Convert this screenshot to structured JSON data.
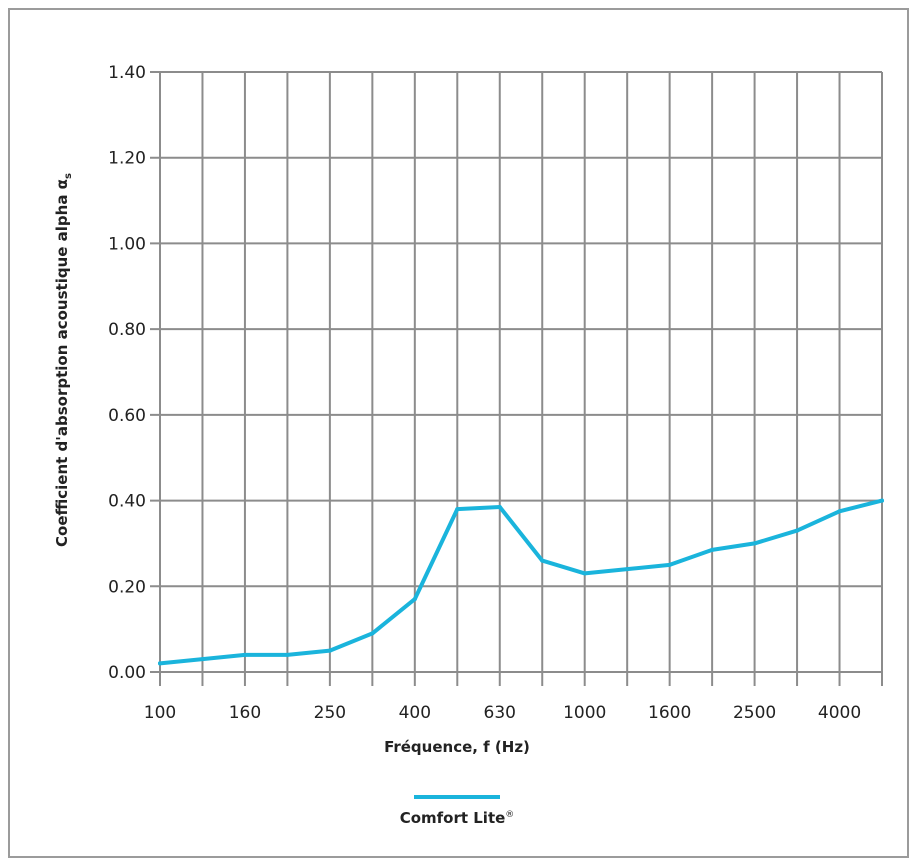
{
  "chart_data": {
    "type": "line",
    "xlabel": "Fréquence, f (Hz)",
    "ylabel": "Coefficient d'absorption acoustique alpha",
    "ylabel_symbol": "α",
    "ylabel_subscript": "s",
    "x": [
      "100",
      "125",
      "160",
      "200",
      "250",
      "315",
      "400",
      "500",
      "630",
      "800",
      "1000",
      "1250",
      "1600",
      "2000",
      "2500",
      "3150",
      "4000",
      "5000"
    ],
    "x_tick_labels": [
      "100",
      "160",
      "250",
      "400",
      "630",
      "1000",
      "1600",
      "2500",
      "4000"
    ],
    "y_tick_labels": [
      "0.00",
      "0.20",
      "0.40",
      "0.60",
      "0.80",
      "1.00",
      "1.20",
      "1.40"
    ],
    "ylim": [
      0,
      1.4
    ],
    "grid": true,
    "series": [
      {
        "name": "Comfort Lite",
        "name_mark": "®",
        "color": "#1ab4dc",
        "values": [
          0.02,
          0.03,
          0.04,
          0.04,
          0.05,
          0.09,
          0.17,
          0.38,
          0.385,
          0.26,
          0.23,
          0.24,
          0.25,
          0.285,
          0.3,
          0.33,
          0.375,
          0.4
        ]
      }
    ],
    "legend_position": "bottom-center"
  },
  "colors": {
    "grid": "#8c8c8c",
    "frame": "#9b9b9b",
    "series": "#1ab4dc",
    "text": "#222222"
  }
}
